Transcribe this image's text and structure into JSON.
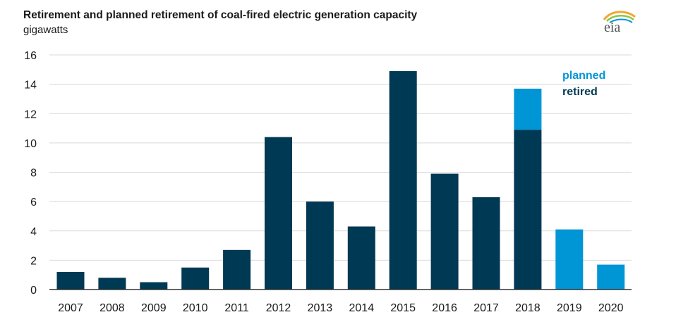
{
  "header": {
    "title": "Retirement and planned retirement of coal-fired electric generation capacity",
    "units": "gigawatts",
    "logo_text": "eia"
  },
  "colors": {
    "retired": "#003953",
    "planned": "#0096d6",
    "grid": "#d9d9d9",
    "axis": "#333333"
  },
  "chart_data": {
    "type": "bar",
    "stacked": true,
    "title": "Retirement and planned retirement of coal-fired electric generation capacity",
    "ylabel": "gigawatts",
    "xlabel": "",
    "ylim": [
      0,
      16
    ],
    "yticks": [
      0,
      2,
      4,
      6,
      8,
      10,
      12,
      14,
      16
    ],
    "grid": true,
    "legend_position": "top-right",
    "categories": [
      "2007",
      "2008",
      "2009",
      "2010",
      "2011",
      "2012",
      "2013",
      "2014",
      "2015",
      "2016",
      "2017",
      "2018",
      "2019",
      "2020"
    ],
    "series": [
      {
        "name": "retired",
        "values": [
          1.2,
          0.8,
          0.5,
          1.5,
          2.7,
          10.4,
          6.0,
          4.3,
          14.9,
          7.9,
          6.3,
          10.9,
          0,
          0
        ]
      },
      {
        "name": "planned",
        "values": [
          0,
          0,
          0,
          0,
          0,
          0,
          0,
          0,
          0,
          0,
          0,
          2.8,
          4.1,
          1.7
        ]
      }
    ]
  }
}
